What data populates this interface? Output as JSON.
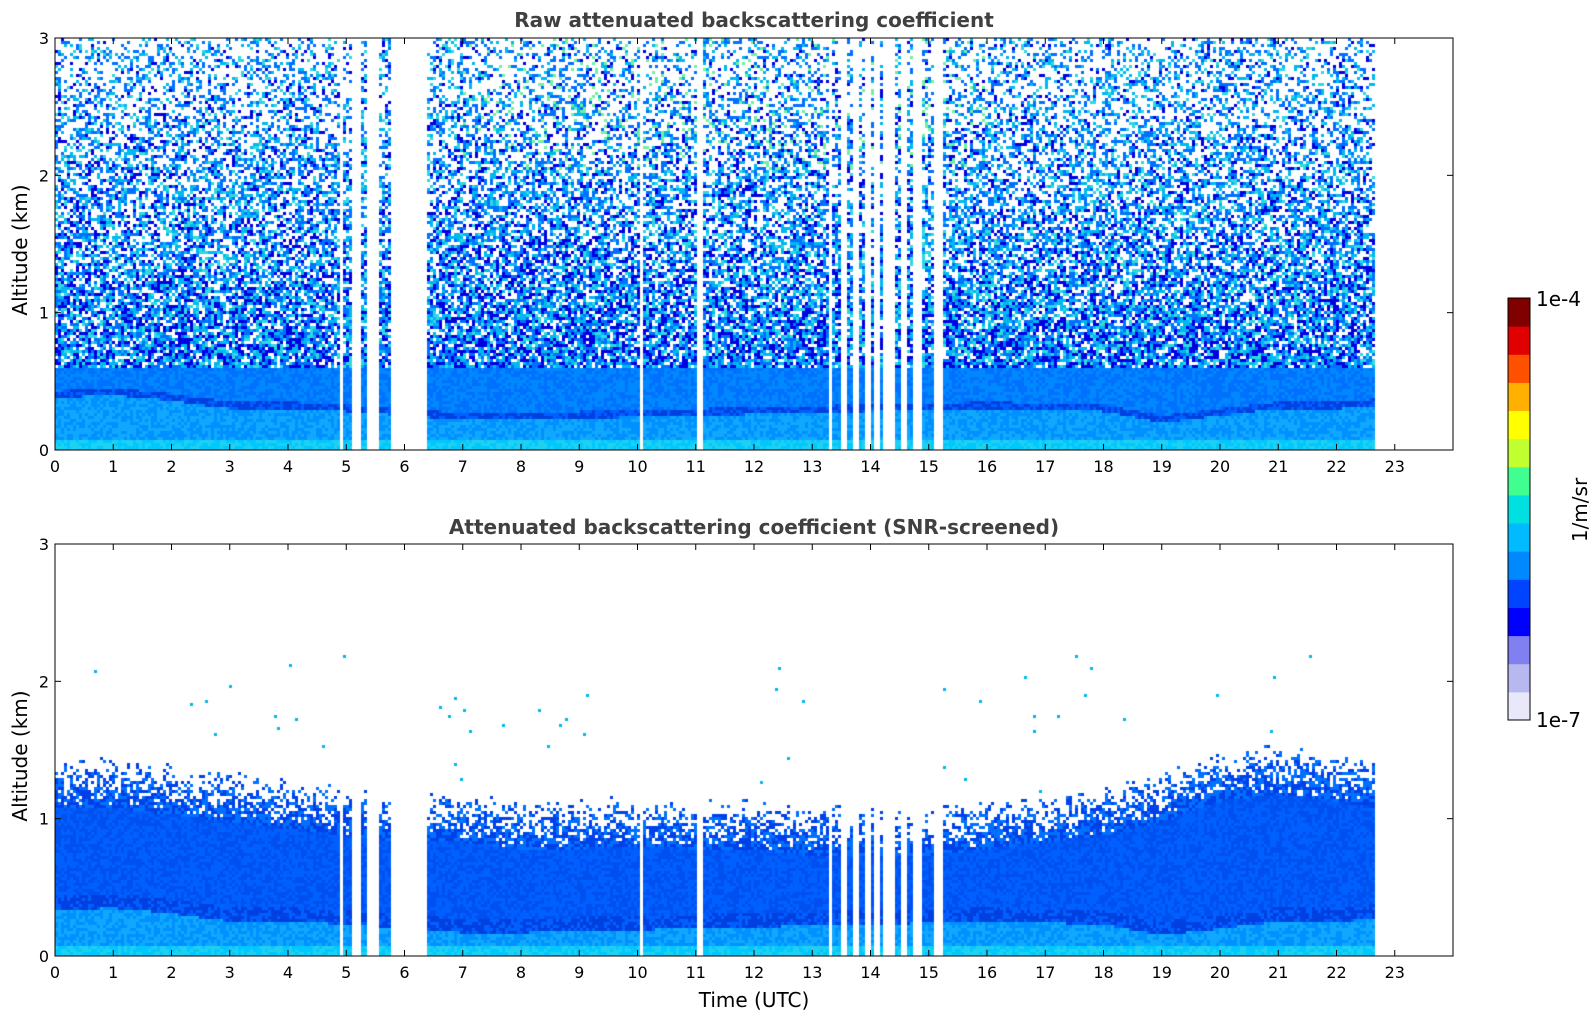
{
  "chart_data": [
    {
      "type": "heatmap",
      "title": "Raw attenuated backscattering coefficient",
      "ylabel": "Altitude (km)",
      "xlabel": "",
      "xlim": [
        0,
        24
      ],
      "ylim": [
        0,
        3
      ],
      "x_ticks": [
        "0",
        "1",
        "2",
        "3",
        "4",
        "5",
        "6",
        "7",
        "8",
        "9",
        "10",
        "11",
        "12",
        "13",
        "14",
        "15",
        "16",
        "17",
        "18",
        "19",
        "20",
        "21",
        "22",
        "23"
      ],
      "y_ticks": [
        "0",
        "1",
        "2",
        "3"
      ],
      "data_end_hour": 22.65,
      "missing_data_hours": [
        [
          4.9,
          4.93
        ],
        [
          5.15,
          5.25
        ],
        [
          5.4,
          5.55
        ],
        [
          5.78,
          5.82
        ],
        [
          5.92,
          6.08
        ],
        [
          6.18,
          6.22
        ],
        [
          6.28,
          6.38
        ],
        [
          10.05,
          10.08
        ],
        [
          11.05,
          11.08
        ],
        [
          13.3,
          13.33
        ],
        [
          13.5,
          13.55
        ],
        [
          13.75,
          13.8
        ],
        [
          13.95,
          14.0
        ],
        [
          14.1,
          14.15
        ],
        [
          14.25,
          14.4
        ],
        [
          14.55,
          14.58
        ],
        [
          14.75,
          14.88
        ],
        [
          15.1,
          15.15
        ],
        [
          15.2,
          15.23
        ]
      ],
      "boundary_layer_top_km": [
        [
          0,
          0.38
        ],
        [
          1,
          0.4
        ],
        [
          2,
          0.36
        ],
        [
          3,
          0.3
        ],
        [
          4,
          0.3
        ],
        [
          5,
          0.28
        ],
        [
          6,
          0.25
        ],
        [
          7,
          0.22
        ],
        [
          8,
          0.22
        ],
        [
          16,
          0.3
        ],
        [
          18,
          0.28
        ],
        [
          19,
          0.2
        ],
        [
          20,
          0.25
        ],
        [
          21,
          0.3
        ],
        [
          22,
          0.3
        ],
        [
          22.65,
          0.32
        ]
      ],
      "noise": "high",
      "grid": false
    },
    {
      "type": "heatmap",
      "title": "Attenuated backscattering coefficient (SNR-screened)",
      "ylabel": "Altitude (km)",
      "xlabel": "Time (UTC)",
      "xlim": [
        0,
        24
      ],
      "ylim": [
        0,
        3
      ],
      "x_ticks": [
        "0",
        "1",
        "2",
        "3",
        "4",
        "5",
        "6",
        "7",
        "8",
        "9",
        "10",
        "11",
        "12",
        "13",
        "14",
        "15",
        "16",
        "17",
        "18",
        "19",
        "20",
        "21",
        "22",
        "23"
      ],
      "y_ticks": [
        "0",
        "1",
        "2",
        "3"
      ],
      "data_end_hour": 22.65,
      "missing_data_hours": [
        [
          4.9,
          4.93
        ],
        [
          5.15,
          5.25
        ],
        [
          5.4,
          5.55
        ],
        [
          5.78,
          5.82
        ],
        [
          5.92,
          6.08
        ],
        [
          6.18,
          6.22
        ],
        [
          6.28,
          6.38
        ],
        [
          10.05,
          10.08
        ],
        [
          11.05,
          11.08
        ],
        [
          13.3,
          13.33
        ],
        [
          13.5,
          13.55
        ],
        [
          13.75,
          13.8
        ],
        [
          13.95,
          14.0
        ],
        [
          14.1,
          14.15
        ],
        [
          14.25,
          14.4
        ],
        [
          14.55,
          14.58
        ],
        [
          14.75,
          14.88
        ],
        [
          15.1,
          15.15
        ],
        [
          15.2,
          15.23
        ]
      ],
      "signal_top_km": [
        [
          0,
          1.2
        ],
        [
          1,
          1.2
        ],
        [
          2,
          1.15
        ],
        [
          3,
          1.1
        ],
        [
          4,
          1.05
        ],
        [
          5,
          1.0
        ],
        [
          6,
          0.95
        ],
        [
          7,
          0.95
        ],
        [
          8,
          0.9
        ],
        [
          9,
          0.9
        ],
        [
          10,
          0.92
        ],
        [
          11,
          0.9
        ],
        [
          12,
          0.9
        ],
        [
          13,
          0.85
        ],
        [
          14,
          0.85
        ],
        [
          15,
          0.85
        ],
        [
          16,
          0.9
        ],
        [
          17,
          0.95
        ],
        [
          18,
          1.0
        ],
        [
          19,
          1.1
        ],
        [
          20,
          1.25
        ],
        [
          21,
          1.3
        ],
        [
          22,
          1.25
        ],
        [
          22.65,
          1.2
        ]
      ],
      "boundary_layer_top_km": [
        [
          0,
          0.38
        ],
        [
          1,
          0.4
        ],
        [
          2,
          0.36
        ],
        [
          3,
          0.3
        ],
        [
          4,
          0.3
        ],
        [
          5,
          0.28
        ],
        [
          6,
          0.25
        ],
        [
          7,
          0.22
        ],
        [
          8,
          0.22
        ],
        [
          16,
          0.3
        ],
        [
          18,
          0.28
        ],
        [
          19,
          0.2
        ],
        [
          20,
          0.25
        ],
        [
          21,
          0.3
        ],
        [
          22,
          0.3
        ],
        [
          22.65,
          0.32
        ]
      ],
      "grid": false
    }
  ],
  "colorbar": {
    "label": "1/m/sr",
    "max_label": "1e-4",
    "min_label": "1e-7",
    "scale": "log",
    "colormap": [
      "#e8e8f8",
      "#b8b8f0",
      "#8080f0",
      "#0000ff",
      "#0044ff",
      "#0088ff",
      "#00bbff",
      "#00e0e0",
      "#40ff90",
      "#c0ff30",
      "#ffff00",
      "#ffb000",
      "#ff5000",
      "#e00000",
      "#800000"
    ]
  }
}
